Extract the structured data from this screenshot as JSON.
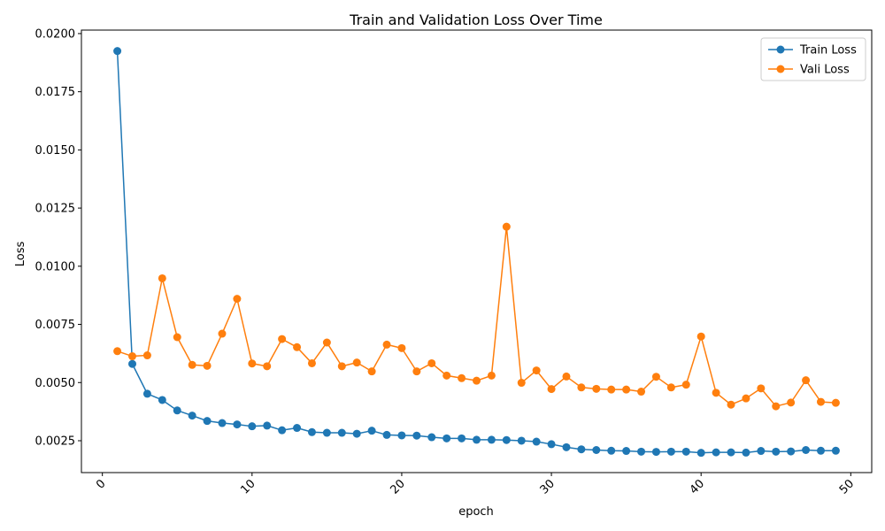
{
  "colors": {
    "train": "#1f77b4",
    "vali": "#ff7f0e"
  },
  "chart_data": {
    "type": "line",
    "title": "Train and Validation Loss Over Time",
    "xlabel": "epoch",
    "ylabel": "Loss",
    "xlim": [
      -1.4,
      51.4
    ],
    "ylim": [
      0.00113,
      0.02015
    ],
    "xticks": [
      0,
      10,
      20,
      30,
      40,
      50
    ],
    "xtick_labels": [
      "0",
      "10",
      "20",
      "30",
      "40",
      "50"
    ],
    "xtick_rotation": 45,
    "yticks": [
      0.0025,
      0.005,
      0.0075,
      0.01,
      0.0125,
      0.015,
      0.0175,
      0.02
    ],
    "ytick_labels": [
      "0.0025",
      "0.0050",
      "0.0075",
      "0.0100",
      "0.0125",
      "0.0150",
      "0.0175",
      "0.0200"
    ],
    "grid": false,
    "legend": "top-right",
    "x": [
      1,
      2,
      3,
      4,
      5,
      6,
      7,
      8,
      9,
      10,
      11,
      12,
      13,
      14,
      15,
      16,
      17,
      18,
      19,
      20,
      21,
      22,
      23,
      24,
      25,
      26,
      27,
      28,
      29,
      30,
      31,
      32,
      33,
      34,
      35,
      36,
      37,
      38,
      39,
      40,
      41,
      42,
      43,
      44,
      45,
      46,
      47,
      48,
      49
    ],
    "series": [
      {
        "name": "Train Loss",
        "marker": "circle",
        "values": [
          0.01925,
          0.0058,
          0.00452,
          0.00425,
          0.0038,
          0.00358,
          0.00335,
          0.00326,
          0.0032,
          0.00312,
          0.00315,
          0.00295,
          0.00305,
          0.00287,
          0.00284,
          0.00284,
          0.0028,
          0.00293,
          0.00275,
          0.00273,
          0.00272,
          0.00265,
          0.0026,
          0.0026,
          0.00254,
          0.00254,
          0.00253,
          0.0025,
          0.00246,
          0.00235,
          0.00222,
          0.00213,
          0.0021,
          0.00207,
          0.00206,
          0.00203,
          0.00202,
          0.00203,
          0.00203,
          0.00198,
          0.002,
          0.002,
          0.00199,
          0.00206,
          0.00203,
          0.00204,
          0.0021,
          0.00207,
          0.00207
        ]
      },
      {
        "name": "Vali Loss",
        "marker": "circle",
        "values": [
          0.00635,
          0.00613,
          0.00617,
          0.00948,
          0.00695,
          0.00576,
          0.00572,
          0.0071,
          0.0086,
          0.00582,
          0.0057,
          0.00687,
          0.00652,
          0.00583,
          0.00672,
          0.0057,
          0.00586,
          0.00548,
          0.00663,
          0.00648,
          0.00548,
          0.00583,
          0.0053,
          0.00519,
          0.00508,
          0.0053,
          0.0117,
          0.00499,
          0.00552,
          0.00472,
          0.00526,
          0.00479,
          0.00473,
          0.0047,
          0.0047,
          0.00461,
          0.00525,
          0.00479,
          0.00491,
          0.00698,
          0.00456,
          0.00405,
          0.00432,
          0.00475,
          0.00398,
          0.00414,
          0.0051,
          0.00417,
          0.00413
        ]
      }
    ]
  }
}
